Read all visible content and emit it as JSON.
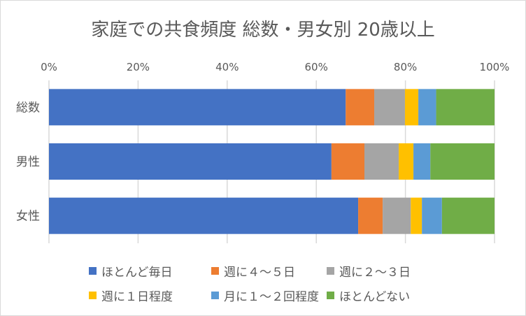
{
  "chart_data": {
    "type": "bar",
    "orientation": "horizontal",
    "stacked": "percent",
    "title": "家庭での共食頻度 総数・男女別 20歳以上",
    "categories": [
      "総数",
      "男性",
      "女性"
    ],
    "x_ticks": [
      "0%",
      "20%",
      "40%",
      "60%",
      "80%",
      "100%"
    ],
    "xlim": [
      0,
      100
    ],
    "grid": true,
    "legend_position": "bottom",
    "series": [
      {
        "name": "ほとんど毎日",
        "color": "#4472C4",
        "values": [
          66.6,
          63.4,
          69.4
        ]
      },
      {
        "name": "週に４～５日",
        "color": "#ED7D31",
        "values": [
          6.4,
          7.4,
          5.5
        ]
      },
      {
        "name": "週に２～３日",
        "color": "#A5A5A5",
        "values": [
          6.9,
          7.7,
          6.3
        ]
      },
      {
        "name": "週に１日程度",
        "color": "#FFC000",
        "values": [
          3.0,
          3.3,
          2.5
        ]
      },
      {
        "name": "月に１～２回程度",
        "color": "#5B9BD5",
        "values": [
          4.0,
          3.8,
          4.5
        ]
      },
      {
        "name": "ほとんどない",
        "color": "#70AD47",
        "values": [
          13.1,
          14.4,
          11.8
        ]
      }
    ]
  }
}
